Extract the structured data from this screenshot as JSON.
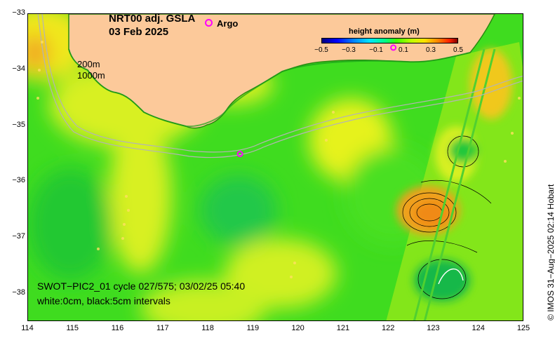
{
  "map": {
    "title_line1": "NRT00 adj. GSLA",
    "title_line2": "03 Feb 2025",
    "argo_legend_label": "Argo",
    "depth_label_200": "200m",
    "depth_label_1000": "1000m",
    "lon_range": [
      114,
      125
    ],
    "lat_range": [
      -38.5,
      -33
    ],
    "lon_ticks": [
      "114",
      "115",
      "116",
      "117",
      "118",
      "119",
      "120",
      "121",
      "122",
      "123",
      "124",
      "125"
    ],
    "lat_ticks": [
      "−33",
      "−34",
      "−35",
      "−36",
      "−37",
      "−38"
    ],
    "colorbar": {
      "title": "height anomaly (m)",
      "tick_labels": [
        "−0.5",
        "−0.3",
        "−0.1",
        "0.1",
        "0.3",
        "0.5"
      ],
      "range": [
        -0.5,
        0.5
      ]
    },
    "swot_caption_line1": "SWOT−PIC2_01 cycle 027/575; 03/02/25 05:40",
    "swot_caption_line2": "white:0cm, black:5cm intervals",
    "credit": "© IMOS 31−Aug−2025 02:14 Hobart",
    "colors": {
      "land": "#fcc99a",
      "ocean_base": "#3fdc1f",
      "positive_anomaly": "#e6f21a",
      "strong_positive": "#f2a01a",
      "argo_marker": "#ff00ff",
      "isobath": "#b4b4b4"
    },
    "argo_float": {
      "lon": 118.7,
      "lat": -35.5
    },
    "argo_float_coast": {
      "lon": 122.1,
      "lat": -33.6
    }
  }
}
